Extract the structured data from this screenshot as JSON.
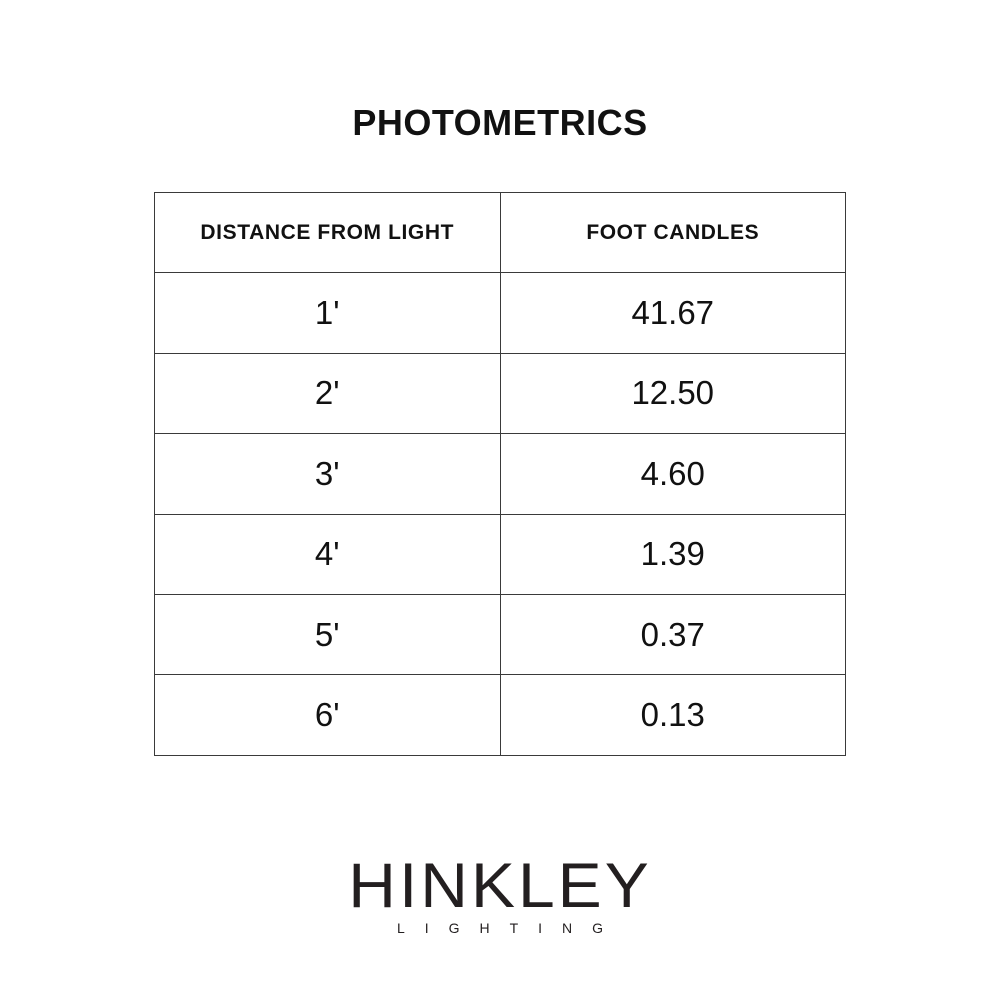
{
  "title": "PHOTOMETRICS",
  "table": {
    "headers": [
      "DISTANCE FROM LIGHT",
      "FOOT CANDLES"
    ],
    "rows": [
      [
        "1'",
        "41.67"
      ],
      [
        "2'",
        "12.50"
      ],
      [
        "3'",
        "4.60"
      ],
      [
        "4'",
        "1.39"
      ],
      [
        "5'",
        "0.37"
      ],
      [
        "6'",
        "0.13"
      ]
    ]
  },
  "logo": {
    "main": "HINKLEY",
    "sub": "LIGHTING"
  }
}
